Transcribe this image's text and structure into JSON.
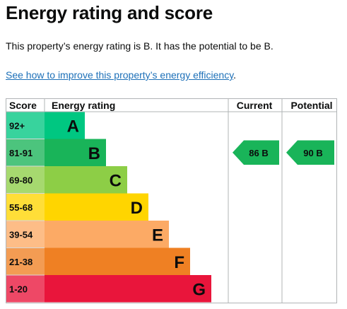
{
  "page": {
    "title": "Energy rating and score",
    "summary": "This property’s energy rating is B. It has the potential to be B.",
    "improve_link": "See how to improve this property’s energy efficiency",
    "improve_link_suffix": "."
  },
  "chart": {
    "headers": {
      "score": "Score",
      "energy_rating": "Energy rating",
      "current": "Current",
      "potential": "Potential"
    },
    "bands": [
      {
        "letter": "A",
        "range": "92+",
        "color": "#00c781",
        "bar_fraction": 0.22
      },
      {
        "letter": "B",
        "range": "81-91",
        "color": "#19b459",
        "bar_fraction": 0.34
      },
      {
        "letter": "C",
        "range": "69-80",
        "color": "#8dce46",
        "bar_fraction": 0.46
      },
      {
        "letter": "D",
        "range": "55-68",
        "color": "#ffd500",
        "bar_fraction": 0.58
      },
      {
        "letter": "E",
        "range": "39-54",
        "color": "#fcaa65",
        "bar_fraction": 0.7
      },
      {
        "letter": "F",
        "range": "21-38",
        "color": "#ef8023",
        "bar_fraction": 0.82
      },
      {
        "letter": "G",
        "range": "1-20",
        "color": "#e9153b",
        "bar_fraction": 0.94
      }
    ],
    "current": {
      "label": "86 B",
      "band": "B",
      "color": "#19b459"
    },
    "potential": {
      "label": "90 B",
      "band": "B",
      "color": "#19b459"
    }
  }
}
